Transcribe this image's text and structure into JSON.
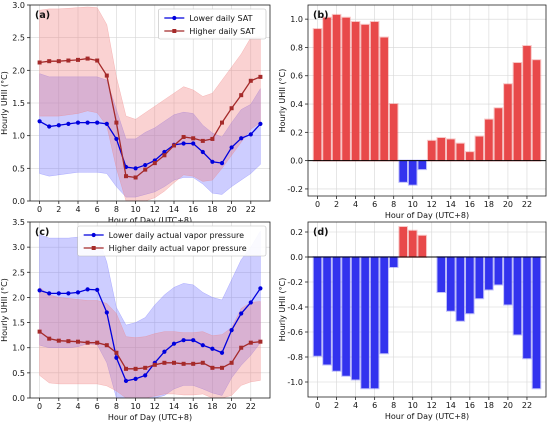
{
  "chart_data": [
    {
      "type": "line",
      "panel_label": "(a)",
      "xlabel": "Hour of Day (UTC+8)",
      "ylabel": "Hourly UHII (°C)",
      "xlim": [
        -1,
        24
      ],
      "ylim": [
        0,
        3.0
      ],
      "xticks": [
        0,
        2,
        4,
        6,
        8,
        10,
        12,
        14,
        16,
        18,
        20,
        22
      ],
      "yticks": [
        0.0,
        0.5,
        1.0,
        1.5,
        2.0,
        2.5,
        3.0
      ],
      "ytick_labels": [
        "0.0",
        "0.5",
        "1.0",
        "1.5",
        "2.0",
        "2.5",
        "3.0"
      ],
      "grid": true,
      "legend_position": "top-right",
      "x": [
        0,
        1,
        2,
        3,
        4,
        5,
        6,
        7,
        8,
        9,
        10,
        11,
        12,
        13,
        14,
        15,
        16,
        17,
        18,
        19,
        20,
        21,
        22,
        23
      ],
      "series": [
        {
          "name": "Lower daily SAT",
          "color": "#0000dd",
          "band_color": "#6f6fff",
          "values": [
            1.22,
            1.14,
            1.16,
            1.18,
            1.2,
            1.2,
            1.2,
            1.18,
            0.95,
            0.52,
            0.5,
            0.55,
            0.62,
            0.75,
            0.86,
            0.88,
            0.88,
            0.75,
            0.6,
            0.58,
            0.82,
            0.96,
            1.02,
            1.18
          ],
          "upper": [
            1.95,
            1.9,
            1.9,
            1.9,
            1.9,
            1.9,
            1.9,
            1.85,
            1.4,
            0.95,
            0.95,
            1.05,
            1.12,
            1.22,
            1.32,
            1.36,
            1.34,
            1.16,
            1.04,
            0.98,
            1.2,
            1.4,
            1.48,
            1.72
          ],
          "lower": [
            0.42,
            0.38,
            0.4,
            0.42,
            0.44,
            0.44,
            0.44,
            0.42,
            0.22,
            0.06,
            0.06,
            0.1,
            0.14,
            0.22,
            0.32,
            0.36,
            0.36,
            0.26,
            0.12,
            0.1,
            0.22,
            0.32,
            0.42,
            0.56
          ]
        },
        {
          "name": "Higher daily SAT",
          "color": "#a52a2a",
          "band_color": "#f07f7f",
          "values": [
            2.12,
            2.14,
            2.14,
            2.15,
            2.16,
            2.18,
            2.15,
            1.92,
            1.2,
            0.38,
            0.36,
            0.48,
            0.58,
            0.7,
            0.85,
            0.98,
            0.96,
            0.92,
            0.95,
            1.2,
            1.42,
            1.62,
            1.84,
            1.9
          ],
          "upper": [
            2.92,
            2.94,
            2.94,
            2.95,
            2.96,
            2.97,
            2.96,
            2.7,
            1.9,
            1.3,
            1.25,
            1.35,
            1.45,
            1.55,
            1.65,
            1.75,
            1.7,
            1.6,
            1.65,
            1.85,
            2.05,
            2.25,
            2.5,
            2.52
          ],
          "lower": [
            1.3,
            1.3,
            1.3,
            1.32,
            1.34,
            1.38,
            1.35,
            1.15,
            0.5,
            0.0,
            0.0,
            0.0,
            0.05,
            0.15,
            0.28,
            0.4,
            0.38,
            0.3,
            0.32,
            0.5,
            0.7,
            0.9,
            1.1,
            1.2
          ]
        }
      ]
    },
    {
      "type": "bar",
      "panel_label": "(b)",
      "xlabel": "Hour of Day (UTC+8)",
      "ylabel": "Hourly UHII (°C)",
      "xlim": [
        -1,
        24
      ],
      "ylim": [
        -0.25,
        1.1
      ],
      "xticks": [
        0,
        2,
        4,
        6,
        8,
        10,
        12,
        14,
        16,
        18,
        20,
        22
      ],
      "yticks": [
        -0.2,
        0.0,
        0.2,
        0.4,
        0.6,
        0.8,
        1.0
      ],
      "ytick_labels": [
        "-0.2",
        "0.0",
        "0.2",
        "0.4",
        "0.6",
        "0.8",
        "1.0"
      ],
      "grid": true,
      "positive_color": "#e8494a",
      "negative_color": "#3333ee",
      "x": [
        0,
        1,
        2,
        3,
        4,
        5,
        6,
        7,
        8,
        9,
        10,
        11,
        12,
        13,
        14,
        15,
        16,
        17,
        18,
        19,
        20,
        21,
        22,
        23
      ],
      "values": [
        0.93,
        1.01,
        1.03,
        1.01,
        0.98,
        0.96,
        0.98,
        0.87,
        0.4,
        -0.15,
        -0.17,
        -0.06,
        0.14,
        0.16,
        0.15,
        0.12,
        0.06,
        0.17,
        0.29,
        0.37,
        0.54,
        0.69,
        0.81,
        0.71
      ]
    },
    {
      "type": "line",
      "panel_label": "(c)",
      "xlabel": "Hour of Day (UTC+8)",
      "ylabel": "Hourly UHII (°C)",
      "xlim": [
        -1,
        24
      ],
      "ylim": [
        0,
        3.5
      ],
      "xticks": [
        0,
        2,
        4,
        6,
        8,
        10,
        12,
        14,
        16,
        18,
        20,
        22
      ],
      "yticks": [
        0.0,
        0.5,
        1.0,
        1.5,
        2.0,
        2.5,
        3.0,
        3.5
      ],
      "ytick_labels": [
        "0.0",
        "0.5",
        "1.0",
        "1.5",
        "2.0",
        "2.5",
        "3.0",
        "3.5"
      ],
      "grid": true,
      "legend_position": "top-right",
      "x": [
        0,
        1,
        2,
        3,
        4,
        5,
        6,
        7,
        8,
        9,
        10,
        11,
        12,
        13,
        14,
        15,
        16,
        17,
        18,
        19,
        20,
        21,
        22,
        23
      ],
      "series": [
        {
          "name": "Lower daily actual vapor pressure",
          "color": "#0000dd",
          "band_color": "#6f6fff",
          "values": [
            2.14,
            2.08,
            2.08,
            2.08,
            2.1,
            2.16,
            2.15,
            1.7,
            0.8,
            0.34,
            0.38,
            0.45,
            0.7,
            0.92,
            1.08,
            1.15,
            1.15,
            1.05,
            0.98,
            0.9,
            1.35,
            1.68,
            1.9,
            2.18
          ],
          "upper": [
            3.25,
            3.18,
            3.18,
            3.18,
            3.2,
            3.26,
            3.25,
            2.7,
            1.8,
            1.45,
            1.5,
            1.6,
            1.85,
            2.05,
            2.2,
            2.28,
            2.25,
            2.1,
            2.0,
            1.95,
            2.35,
            2.75,
            3.0,
            3.32
          ],
          "lower": [
            1.05,
            1.0,
            1.0,
            1.0,
            1.02,
            1.08,
            1.06,
            0.7,
            0.0,
            0.0,
            0.0,
            0.0,
            0.0,
            0.05,
            0.18,
            0.25,
            0.25,
            0.18,
            0.1,
            0.05,
            0.4,
            0.65,
            0.85,
            1.1
          ]
        },
        {
          "name": "Higher daily actual vapor pressure",
          "color": "#a52a2a",
          "band_color": "#f07f7f",
          "values": [
            1.32,
            1.18,
            1.14,
            1.13,
            1.12,
            1.1,
            1.1,
            1.05,
            0.9,
            0.58,
            0.58,
            0.6,
            0.66,
            0.7,
            0.7,
            0.68,
            0.68,
            0.7,
            0.6,
            0.6,
            0.7,
            1.0,
            1.1,
            1.12
          ],
          "upper": [
            2.2,
            2.05,
            2.0,
            1.98,
            1.96,
            1.94,
            1.94,
            1.88,
            1.68,
            1.22,
            1.2,
            1.22,
            1.28,
            1.32,
            1.32,
            1.3,
            1.3,
            1.32,
            1.24,
            1.26,
            1.4,
            1.78,
            1.9,
            1.92
          ],
          "lower": [
            0.45,
            0.3,
            0.28,
            0.28,
            0.28,
            0.28,
            0.28,
            0.24,
            0.14,
            0.0,
            0.0,
            0.0,
            0.04,
            0.08,
            0.08,
            0.06,
            0.06,
            0.08,
            0.0,
            0.0,
            0.05,
            0.25,
            0.32,
            0.35
          ]
        }
      ]
    },
    {
      "type": "bar",
      "panel_label": "(d)",
      "xlabel": "Hour of Day (UTC+8)",
      "ylabel": "Hourly UHII (°C)",
      "xlim": [
        -1,
        24
      ],
      "ylim": [
        -1.12,
        0.28
      ],
      "xticks": [
        0,
        2,
        4,
        6,
        8,
        10,
        12,
        14,
        16,
        18,
        20,
        22
      ],
      "yticks": [
        -1.0,
        -0.8,
        -0.6,
        -0.4,
        -0.2,
        0.0,
        0.2
      ],
      "ytick_labels": [
        "-1.0",
        "-0.8",
        "-0.6",
        "-0.4",
        "-0.2",
        "0.0",
        "0.2"
      ],
      "grid": true,
      "positive_color": "#e8494a",
      "negative_color": "#3333ee",
      "x": [
        0,
        1,
        2,
        3,
        4,
        5,
        6,
        7,
        8,
        9,
        10,
        11,
        12,
        13,
        14,
        15,
        16,
        17,
        18,
        19,
        20,
        21,
        22,
        23
      ],
      "values": [
        -0.79,
        -0.86,
        -0.91,
        -0.95,
        -0.98,
        -1.05,
        -1.05,
        -0.77,
        -0.08,
        0.24,
        0.21,
        0.17,
        0.0,
        -0.28,
        -0.43,
        -0.51,
        -0.45,
        -0.33,
        -0.26,
        -0.22,
        -0.38,
        -0.62,
        -0.81,
        -1.05
      ]
    }
  ]
}
